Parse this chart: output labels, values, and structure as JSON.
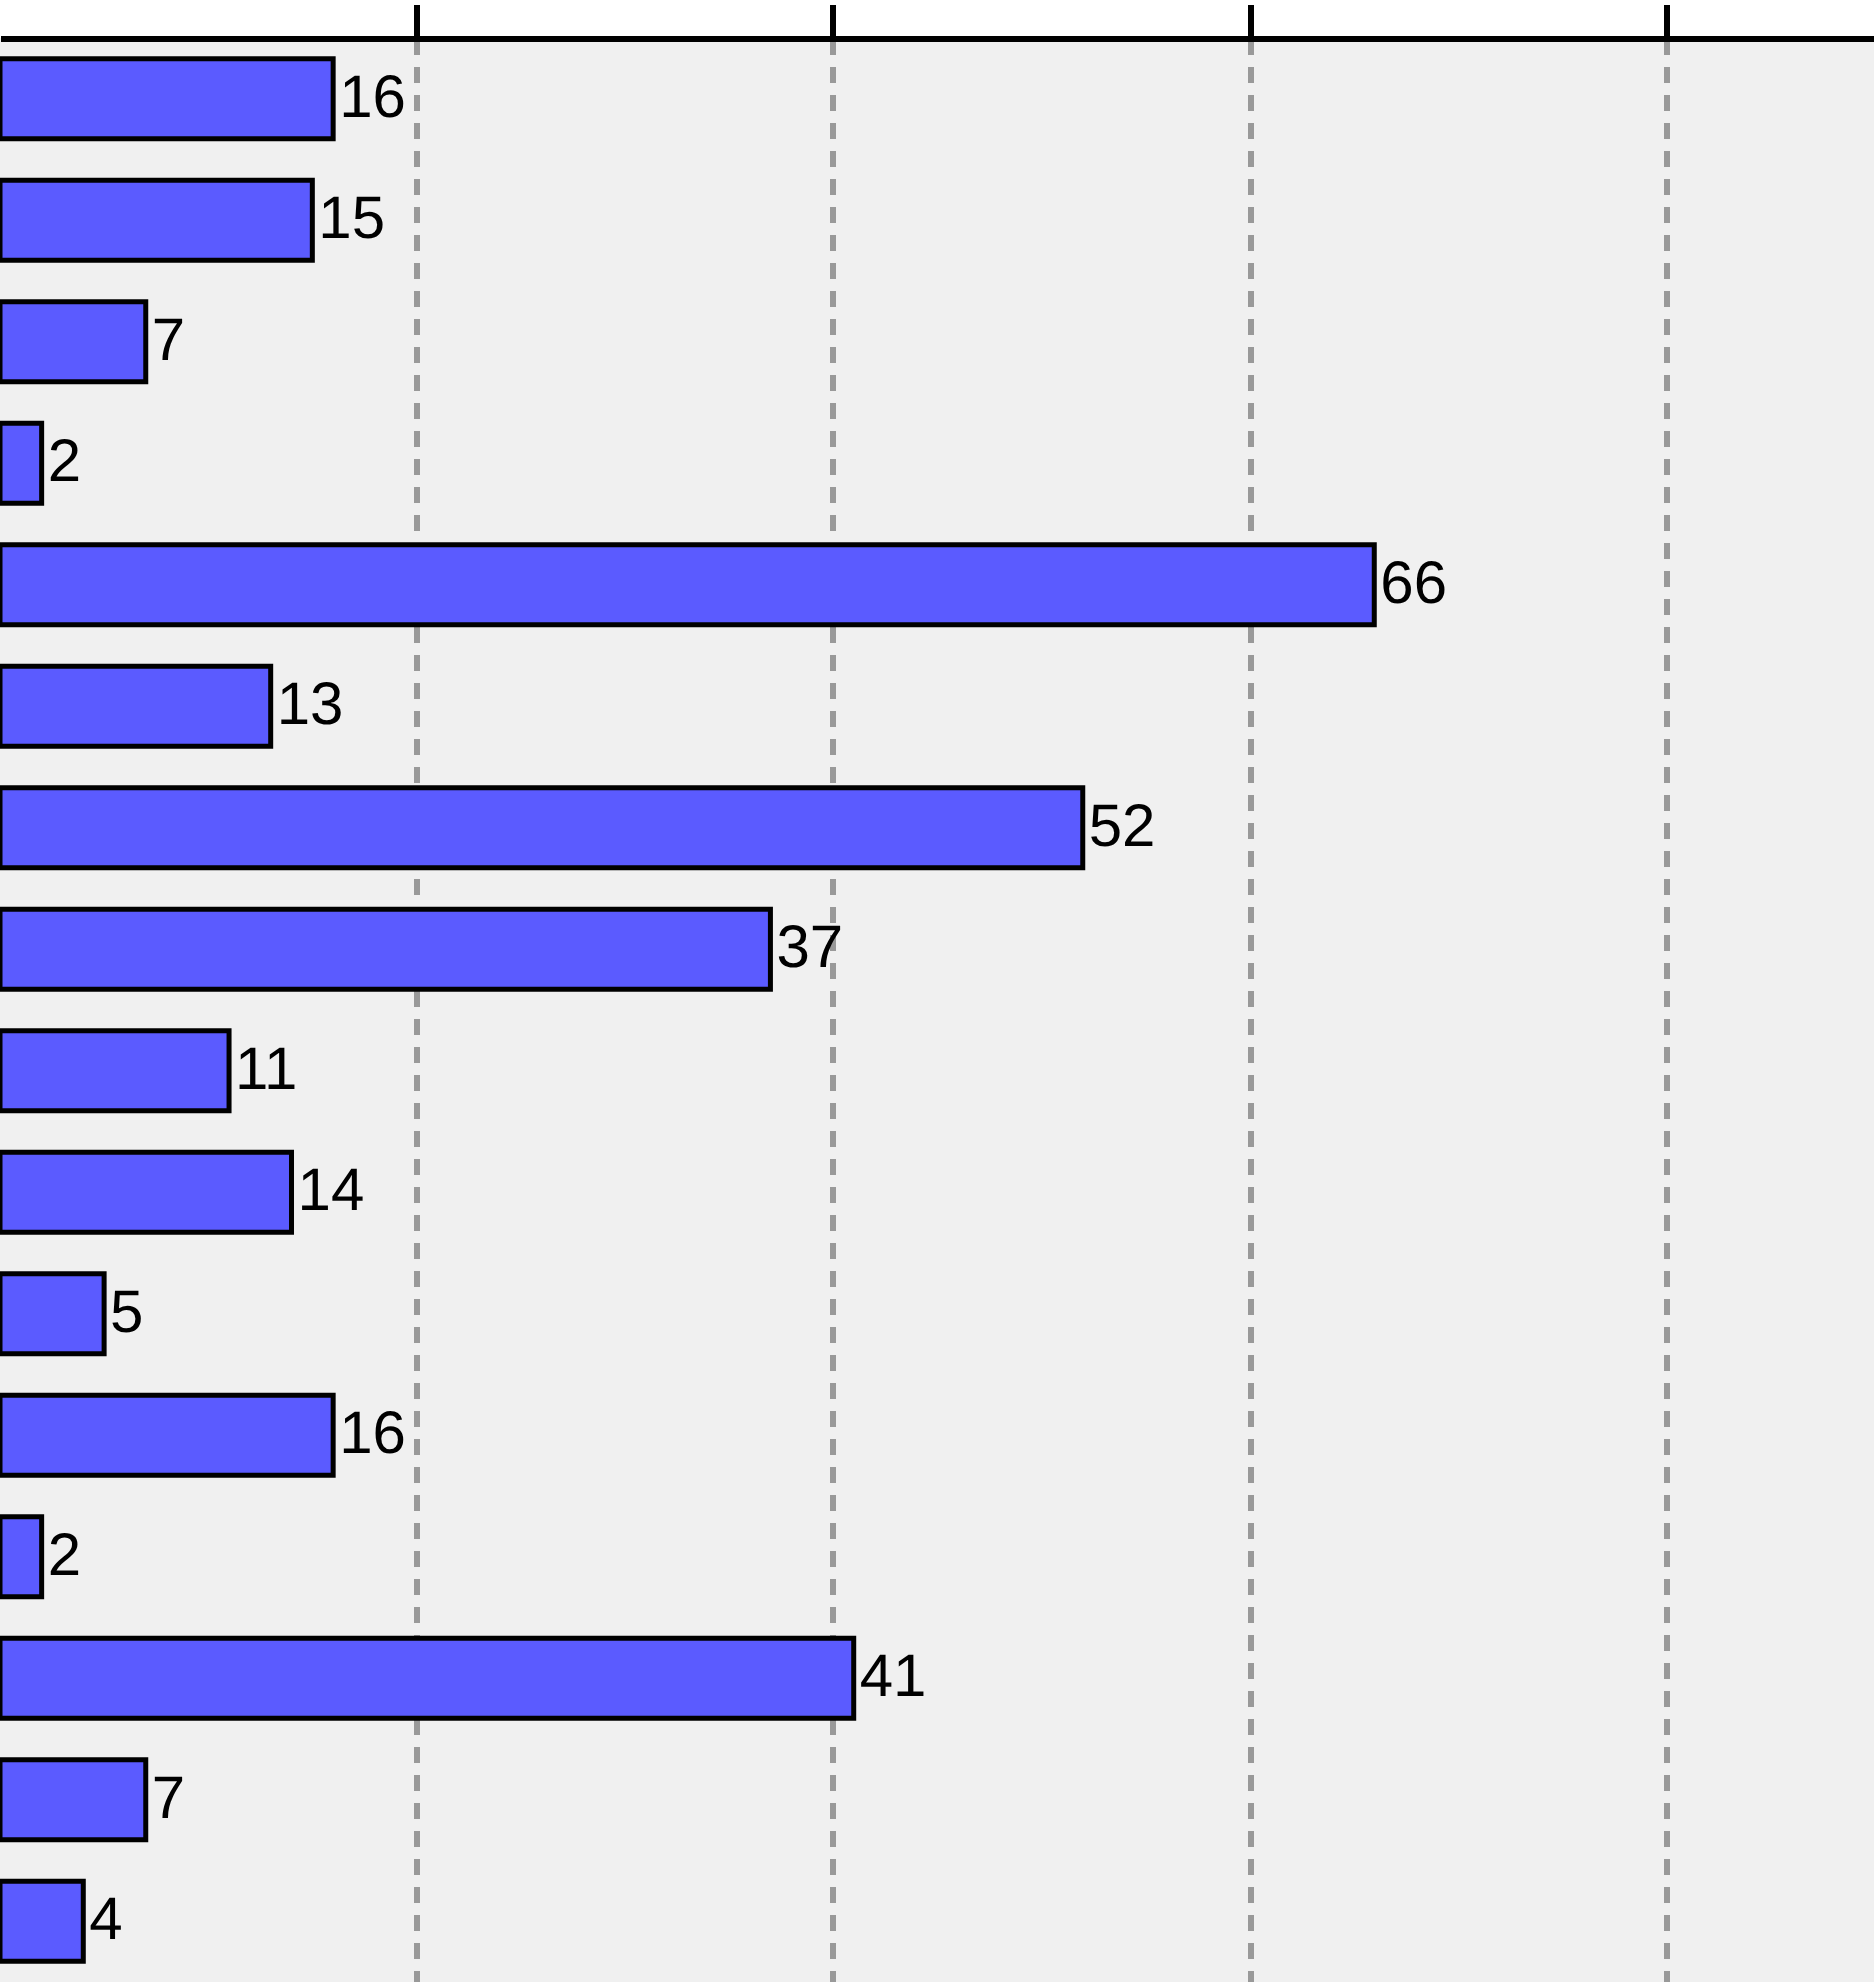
{
  "chart_data": {
    "type": "bar",
    "orientation": "horizontal",
    "categories": [
      null,
      null,
      null,
      null,
      null,
      null,
      null,
      null,
      null,
      null,
      null,
      null,
      null,
      null,
      null,
      null
    ],
    "values": [
      16,
      15,
      7,
      2,
      66,
      13,
      52,
      37,
      11,
      14,
      5,
      16,
      2,
      41,
      7,
      4
    ],
    "color": "#5b5bff",
    "xlim": [
      0,
      90
    ],
    "xticks": [
      {
        "value": 20,
        "label": null
      },
      {
        "value": 40,
        "label": null
      },
      {
        "value": 60,
        "label": null
      },
      {
        "value": 80,
        "label": null
      }
    ],
    "grid": "x",
    "data_labels": true
  }
}
